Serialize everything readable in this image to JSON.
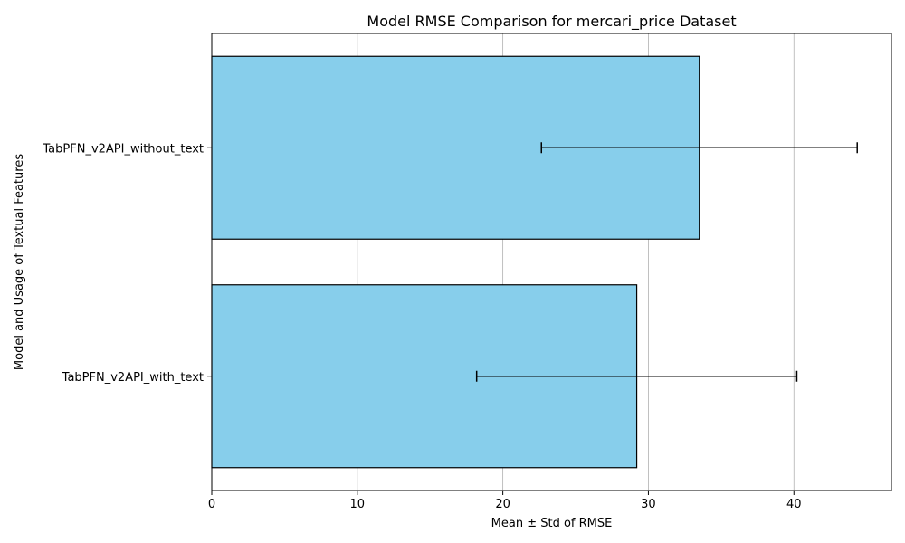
{
  "chart_data": {
    "type": "bar",
    "orientation": "horizontal",
    "title": "Model RMSE Comparison for mercari_price Dataset",
    "xlabel": "Mean ± Std of RMSE",
    "ylabel": "Model and Usage of Textual Features",
    "categories": [
      "TabPFN_v2API_with_text",
      "TabPFN_v2API_without_text"
    ],
    "values": [
      29.2,
      33.5
    ],
    "errors": [
      11.0,
      10.85
    ],
    "xlim": [
      0,
      46.7
    ],
    "xticks": [
      0,
      10,
      20,
      30,
      40
    ],
    "grid": "x",
    "bar_color": "#87ceeb",
    "edge_color": "#000000",
    "error_color": "#000000"
  }
}
